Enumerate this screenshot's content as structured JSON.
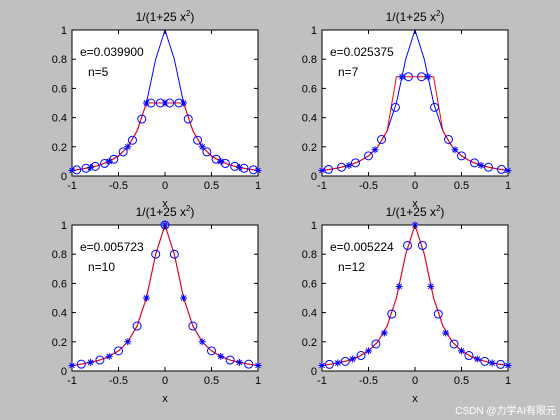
{
  "figure": {
    "background": "#c0c0c0",
    "watermark": "CSDN @力学AI有限元"
  },
  "chart_data": [
    {
      "type": "line",
      "title": "1/(1+25 x^2)",
      "xlabel": "x",
      "xlim": [
        -1,
        1
      ],
      "ylim": [
        0,
        1
      ],
      "xticks": [
        "-1",
        "-0.5",
        "0",
        "0.5",
        "1"
      ],
      "yticks": [
        "0",
        "0.2",
        "0.4",
        "0.6",
        "0.8",
        "1"
      ],
      "annotations": [
        "e=0.039900",
        "n=5"
      ],
      "series": [
        {
          "color": "#0000ff",
          "style": "line",
          "x": [
            -1,
            -0.9,
            -0.8,
            -0.7,
            -0.6,
            -0.5,
            -0.4,
            -0.3,
            -0.2,
            -0.1,
            0,
            0.1,
            0.2,
            0.3,
            0.4,
            0.5,
            0.6,
            0.7,
            0.8,
            0.9,
            1
          ],
          "y": [
            0.038,
            0.047,
            0.059,
            0.075,
            0.1,
            0.138,
            0.2,
            0.308,
            0.5,
            0.8,
            1.0,
            0.8,
            0.5,
            0.308,
            0.2,
            0.138,
            0.1,
            0.075,
            0.059,
            0.047,
            0.038
          ]
        },
        {
          "color": "#ff0000",
          "style": "line",
          "x": [
            -1,
            -0.9,
            -0.8,
            -0.7,
            -0.6,
            -0.5,
            -0.4,
            -0.3,
            -0.2,
            -0.1,
            0,
            0.1,
            0.2,
            0.3,
            0.4,
            0.5,
            0.6,
            0.7,
            0.8,
            0.9,
            1
          ],
          "y": [
            0.038,
            0.047,
            0.059,
            0.075,
            0.1,
            0.135,
            0.2,
            0.31,
            0.5,
            0.5,
            0.5,
            0.5,
            0.5,
            0.31,
            0.2,
            0.135,
            0.1,
            0.075,
            0.059,
            0.047,
            0.038
          ]
        },
        {
          "color": "#0000ff",
          "style": "marker",
          "marker": "o",
          "x": [
            -0.95,
            -0.85,
            -0.75,
            -0.65,
            -0.55,
            -0.45,
            -0.35,
            -0.25,
            -0.15,
            -0.05,
            0.05,
            0.15,
            0.25,
            0.35,
            0.45,
            0.55,
            0.65,
            0.75,
            0.85,
            0.95
          ],
          "y": [
            0.042,
            0.053,
            0.066,
            0.086,
            0.115,
            0.165,
            0.245,
            0.39,
            0.5,
            0.5,
            0.5,
            0.5,
            0.39,
            0.245,
            0.165,
            0.115,
            0.086,
            0.066,
            0.053,
            0.042
          ]
        },
        {
          "color": "#0000ff",
          "style": "marker",
          "marker": "*",
          "x": [
            -1,
            -0.8,
            -0.6,
            -0.4,
            -0.2,
            0,
            0.2,
            0.4,
            0.6,
            0.8,
            1
          ],
          "y": [
            0.038,
            0.059,
            0.1,
            0.2,
            0.5,
            0.5,
            0.5,
            0.2,
            0.1,
            0.059,
            0.038
          ]
        }
      ]
    },
    {
      "type": "line",
      "title": "1/(1+25 x^2)",
      "xlabel": "x",
      "xlim": [
        -1,
        1
      ],
      "ylim": [
        0,
        1
      ],
      "xticks": [
        "-1",
        "-0.5",
        "0",
        "0.5",
        "1"
      ],
      "yticks": [
        "0",
        "0.2",
        "0.4",
        "0.6",
        "0.8",
        "1"
      ],
      "annotations": [
        "e=0.025375",
        "n=7"
      ],
      "series": [
        {
          "color": "#0000ff",
          "style": "line",
          "x": [
            -1,
            -0.9,
            -0.8,
            -0.7,
            -0.6,
            -0.5,
            -0.4,
            -0.3,
            -0.2,
            -0.1,
            0,
            0.1,
            0.2,
            0.3,
            0.4,
            0.5,
            0.6,
            0.7,
            0.8,
            0.9,
            1
          ],
          "y": [
            0.038,
            0.047,
            0.059,
            0.075,
            0.1,
            0.138,
            0.2,
            0.308,
            0.5,
            0.8,
            1.0,
            0.8,
            0.5,
            0.308,
            0.2,
            0.138,
            0.1,
            0.075,
            0.059,
            0.047,
            0.038
          ]
        },
        {
          "color": "#ff0000",
          "style": "line",
          "x": [
            -1,
            -0.9,
            -0.8,
            -0.7,
            -0.6,
            -0.5,
            -0.4,
            -0.3,
            -0.2,
            -0.1,
            0,
            0.1,
            0.2,
            0.3,
            0.4,
            0.5,
            0.6,
            0.7,
            0.8,
            0.9,
            1
          ],
          "y": [
            0.038,
            0.047,
            0.059,
            0.075,
            0.1,
            0.138,
            0.2,
            0.308,
            0.68,
            0.68,
            0.68,
            0.68,
            0.68,
            0.308,
            0.2,
            0.138,
            0.1,
            0.075,
            0.059,
            0.047,
            0.038
          ]
        },
        {
          "color": "#0000ff",
          "style": "marker",
          "marker": "o",
          "x": [
            -0.93,
            -0.79,
            -0.64,
            -0.5,
            -0.36,
            -0.21,
            -0.07,
            0.07,
            0.21,
            0.36,
            0.5,
            0.64,
            0.79,
            0.93
          ],
          "y": [
            0.045,
            0.06,
            0.09,
            0.138,
            0.25,
            0.47,
            0.68,
            0.68,
            0.47,
            0.25,
            0.138,
            0.09,
            0.06,
            0.045
          ]
        },
        {
          "color": "#0000ff",
          "style": "marker",
          "marker": "*",
          "x": [
            -1,
            -0.71,
            -0.43,
            -0.14,
            0.14,
            0.43,
            0.71,
            1
          ],
          "y": [
            0.038,
            0.073,
            0.18,
            0.68,
            0.68,
            0.18,
            0.073,
            0.038
          ]
        }
      ]
    },
    {
      "type": "line",
      "title": "1/(1+25 x^2)",
      "xlabel": "x",
      "xlim": [
        -1,
        1
      ],
      "ylim": [
        0,
        1
      ],
      "xticks": [
        "-1",
        "-0.5",
        "0",
        "0.5",
        "1"
      ],
      "yticks": [
        "0",
        "0.2",
        "0.4",
        "0.6",
        "0.8",
        "1"
      ],
      "annotations": [
        "e=0.005723",
        "n=10"
      ],
      "series": [
        {
          "color": "#0000ff",
          "style": "line",
          "x": [
            -1,
            -0.9,
            -0.8,
            -0.7,
            -0.6,
            -0.5,
            -0.4,
            -0.3,
            -0.2,
            -0.1,
            0,
            0.1,
            0.2,
            0.3,
            0.4,
            0.5,
            0.6,
            0.7,
            0.8,
            0.9,
            1
          ],
          "y": [
            0.038,
            0.047,
            0.059,
            0.075,
            0.1,
            0.138,
            0.2,
            0.308,
            0.5,
            0.8,
            1.0,
            0.8,
            0.5,
            0.308,
            0.2,
            0.138,
            0.1,
            0.075,
            0.059,
            0.047,
            0.038
          ]
        },
        {
          "color": "#ff0000",
          "style": "line",
          "x": [
            -1,
            -0.9,
            -0.8,
            -0.7,
            -0.6,
            -0.5,
            -0.4,
            -0.3,
            -0.2,
            -0.1,
            0,
            0.1,
            0.2,
            0.3,
            0.4,
            0.5,
            0.6,
            0.7,
            0.8,
            0.9,
            1
          ],
          "y": [
            0.038,
            0.047,
            0.059,
            0.075,
            0.1,
            0.138,
            0.2,
            0.308,
            0.5,
            0.8,
            1.0,
            0.8,
            0.5,
            0.308,
            0.2,
            0.138,
            0.1,
            0.075,
            0.059,
            0.047,
            0.038
          ]
        },
        {
          "color": "#0000ff",
          "style": "marker",
          "marker": "o",
          "x": [
            -0.9,
            -0.7,
            -0.5,
            -0.3,
            -0.1,
            0,
            0.1,
            0.3,
            0.5,
            0.7,
            0.9
          ],
          "y": [
            0.047,
            0.075,
            0.138,
            0.308,
            0.8,
            1.0,
            0.8,
            0.308,
            0.138,
            0.075,
            0.047
          ]
        },
        {
          "color": "#0000ff",
          "style": "marker",
          "marker": "*",
          "x": [
            -1,
            -0.8,
            -0.6,
            -0.4,
            -0.2,
            0,
            0.2,
            0.4,
            0.6,
            0.8,
            1
          ],
          "y": [
            0.038,
            0.059,
            0.1,
            0.2,
            0.5,
            1.0,
            0.5,
            0.2,
            0.1,
            0.059,
            0.038
          ]
        }
      ]
    },
    {
      "type": "line",
      "title": "1/(1+25 x^2)",
      "xlabel": "x",
      "xlim": [
        -1,
        1
      ],
      "ylim": [
        0,
        1
      ],
      "xticks": [
        "-1",
        "-0.5",
        "0",
        "0.5",
        "1"
      ],
      "yticks": [
        "0",
        "0.2",
        "0.4",
        "0.6",
        "0.8",
        "1"
      ],
      "annotations": [
        "e=0.005224",
        "n=12"
      ],
      "series": [
        {
          "color": "#0000ff",
          "style": "line",
          "x": [
            -1,
            -0.9,
            -0.8,
            -0.7,
            -0.6,
            -0.5,
            -0.4,
            -0.3,
            -0.2,
            -0.1,
            0,
            0.1,
            0.2,
            0.3,
            0.4,
            0.5,
            0.6,
            0.7,
            0.8,
            0.9,
            1
          ],
          "y": [
            0.038,
            0.047,
            0.059,
            0.075,
            0.1,
            0.138,
            0.2,
            0.308,
            0.5,
            0.8,
            1.0,
            0.8,
            0.5,
            0.308,
            0.2,
            0.138,
            0.1,
            0.075,
            0.059,
            0.047,
            0.038
          ]
        },
        {
          "color": "#ff0000",
          "style": "line",
          "x": [
            -1,
            -0.9,
            -0.8,
            -0.7,
            -0.6,
            -0.5,
            -0.4,
            -0.3,
            -0.2,
            -0.1,
            0,
            0.1,
            0.2,
            0.3,
            0.4,
            0.5,
            0.6,
            0.7,
            0.8,
            0.9,
            1
          ],
          "y": [
            0.038,
            0.047,
            0.059,
            0.075,
            0.1,
            0.138,
            0.2,
            0.308,
            0.5,
            0.8,
            1.0,
            0.8,
            0.5,
            0.308,
            0.2,
            0.138,
            0.1,
            0.075,
            0.059,
            0.047,
            0.038
          ]
        },
        {
          "color": "#0000ff",
          "style": "marker",
          "marker": "o",
          "x": [
            -0.92,
            -0.75,
            -0.58,
            -0.42,
            -0.25,
            -0.08,
            0.08,
            0.25,
            0.42,
            0.58,
            0.75,
            0.92
          ],
          "y": [
            0.045,
            0.066,
            0.106,
            0.185,
            0.39,
            0.86,
            0.86,
            0.39,
            0.185,
            0.106,
            0.066,
            0.045
          ]
        },
        {
          "color": "#0000ff",
          "style": "marker",
          "marker": "*",
          "x": [
            -1,
            -0.83,
            -0.67,
            -0.5,
            -0.33,
            -0.17,
            0,
            0.17,
            0.33,
            0.5,
            0.67,
            0.83,
            1
          ],
          "y": [
            0.038,
            0.055,
            0.082,
            0.138,
            0.26,
            0.58,
            1.0,
            0.58,
            0.26,
            0.138,
            0.082,
            0.055,
            0.038
          ]
        }
      ]
    }
  ]
}
